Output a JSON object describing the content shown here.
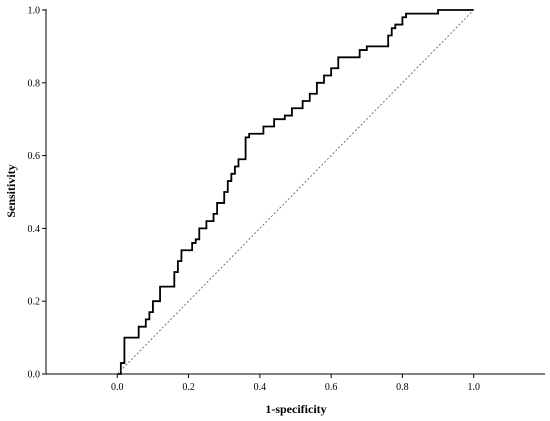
{
  "chart_data": {
    "type": "line",
    "title": "",
    "xlabel": "1-specificity",
    "ylabel": "Sensitivity",
    "xlim": [
      -0.2,
      1.2
    ],
    "ylim": [
      0,
      1
    ],
    "x_ticks": [
      "0.0",
      "0.2",
      "0.4",
      "0.6",
      "0.8",
      "1.0"
    ],
    "y_ticks": [
      "0.0",
      "0.2",
      "0.4",
      "0.6",
      "0.8",
      "1.0"
    ],
    "grid": false,
    "legend": "none",
    "series": [
      {
        "style": "solid",
        "color": "#000000",
        "x": [
          0.0,
          0.01,
          0.01,
          0.02,
          0.02,
          0.06,
          0.06,
          0.08,
          0.08,
          0.09,
          0.09,
          0.1,
          0.1,
          0.12,
          0.12,
          0.16,
          0.16,
          0.17,
          0.17,
          0.18,
          0.18,
          0.21,
          0.21,
          0.22,
          0.22,
          0.23,
          0.23,
          0.25,
          0.25,
          0.27,
          0.27,
          0.28,
          0.28,
          0.3,
          0.3,
          0.31,
          0.31,
          0.32,
          0.32,
          0.33,
          0.33,
          0.34,
          0.34,
          0.36,
          0.36,
          0.37,
          0.37,
          0.41,
          0.41,
          0.44,
          0.44,
          0.47,
          0.47,
          0.49,
          0.49,
          0.52,
          0.52,
          0.54,
          0.54,
          0.56,
          0.56,
          0.58,
          0.58,
          0.6,
          0.6,
          0.62,
          0.62,
          0.68,
          0.68,
          0.7,
          0.7,
          0.76,
          0.76,
          0.77,
          0.77,
          0.78,
          0.78,
          0.8,
          0.8,
          0.81,
          0.81,
          0.9,
          0.9,
          1.0
        ],
        "y": [
          0.0,
          0.0,
          0.03,
          0.03,
          0.1,
          0.1,
          0.13,
          0.13,
          0.15,
          0.15,
          0.17,
          0.17,
          0.2,
          0.2,
          0.24,
          0.24,
          0.28,
          0.28,
          0.31,
          0.31,
          0.34,
          0.34,
          0.36,
          0.36,
          0.37,
          0.37,
          0.4,
          0.4,
          0.42,
          0.42,
          0.44,
          0.44,
          0.47,
          0.47,
          0.5,
          0.5,
          0.53,
          0.53,
          0.55,
          0.55,
          0.57,
          0.57,
          0.59,
          0.59,
          0.65,
          0.65,
          0.66,
          0.66,
          0.68,
          0.68,
          0.7,
          0.7,
          0.71,
          0.71,
          0.73,
          0.73,
          0.75,
          0.75,
          0.77,
          0.77,
          0.8,
          0.8,
          0.82,
          0.82,
          0.84,
          0.84,
          0.87,
          0.87,
          0.89,
          0.89,
          0.9,
          0.9,
          0.93,
          0.93,
          0.95,
          0.95,
          0.96,
          0.96,
          0.98,
          0.98,
          0.99,
          0.99,
          1.0,
          1.0
        ]
      },
      {
        "style": "dotted",
        "color": "#555555",
        "x": [
          0.0,
          1.0
        ],
        "y": [
          0.0,
          1.0
        ]
      }
    ]
  }
}
